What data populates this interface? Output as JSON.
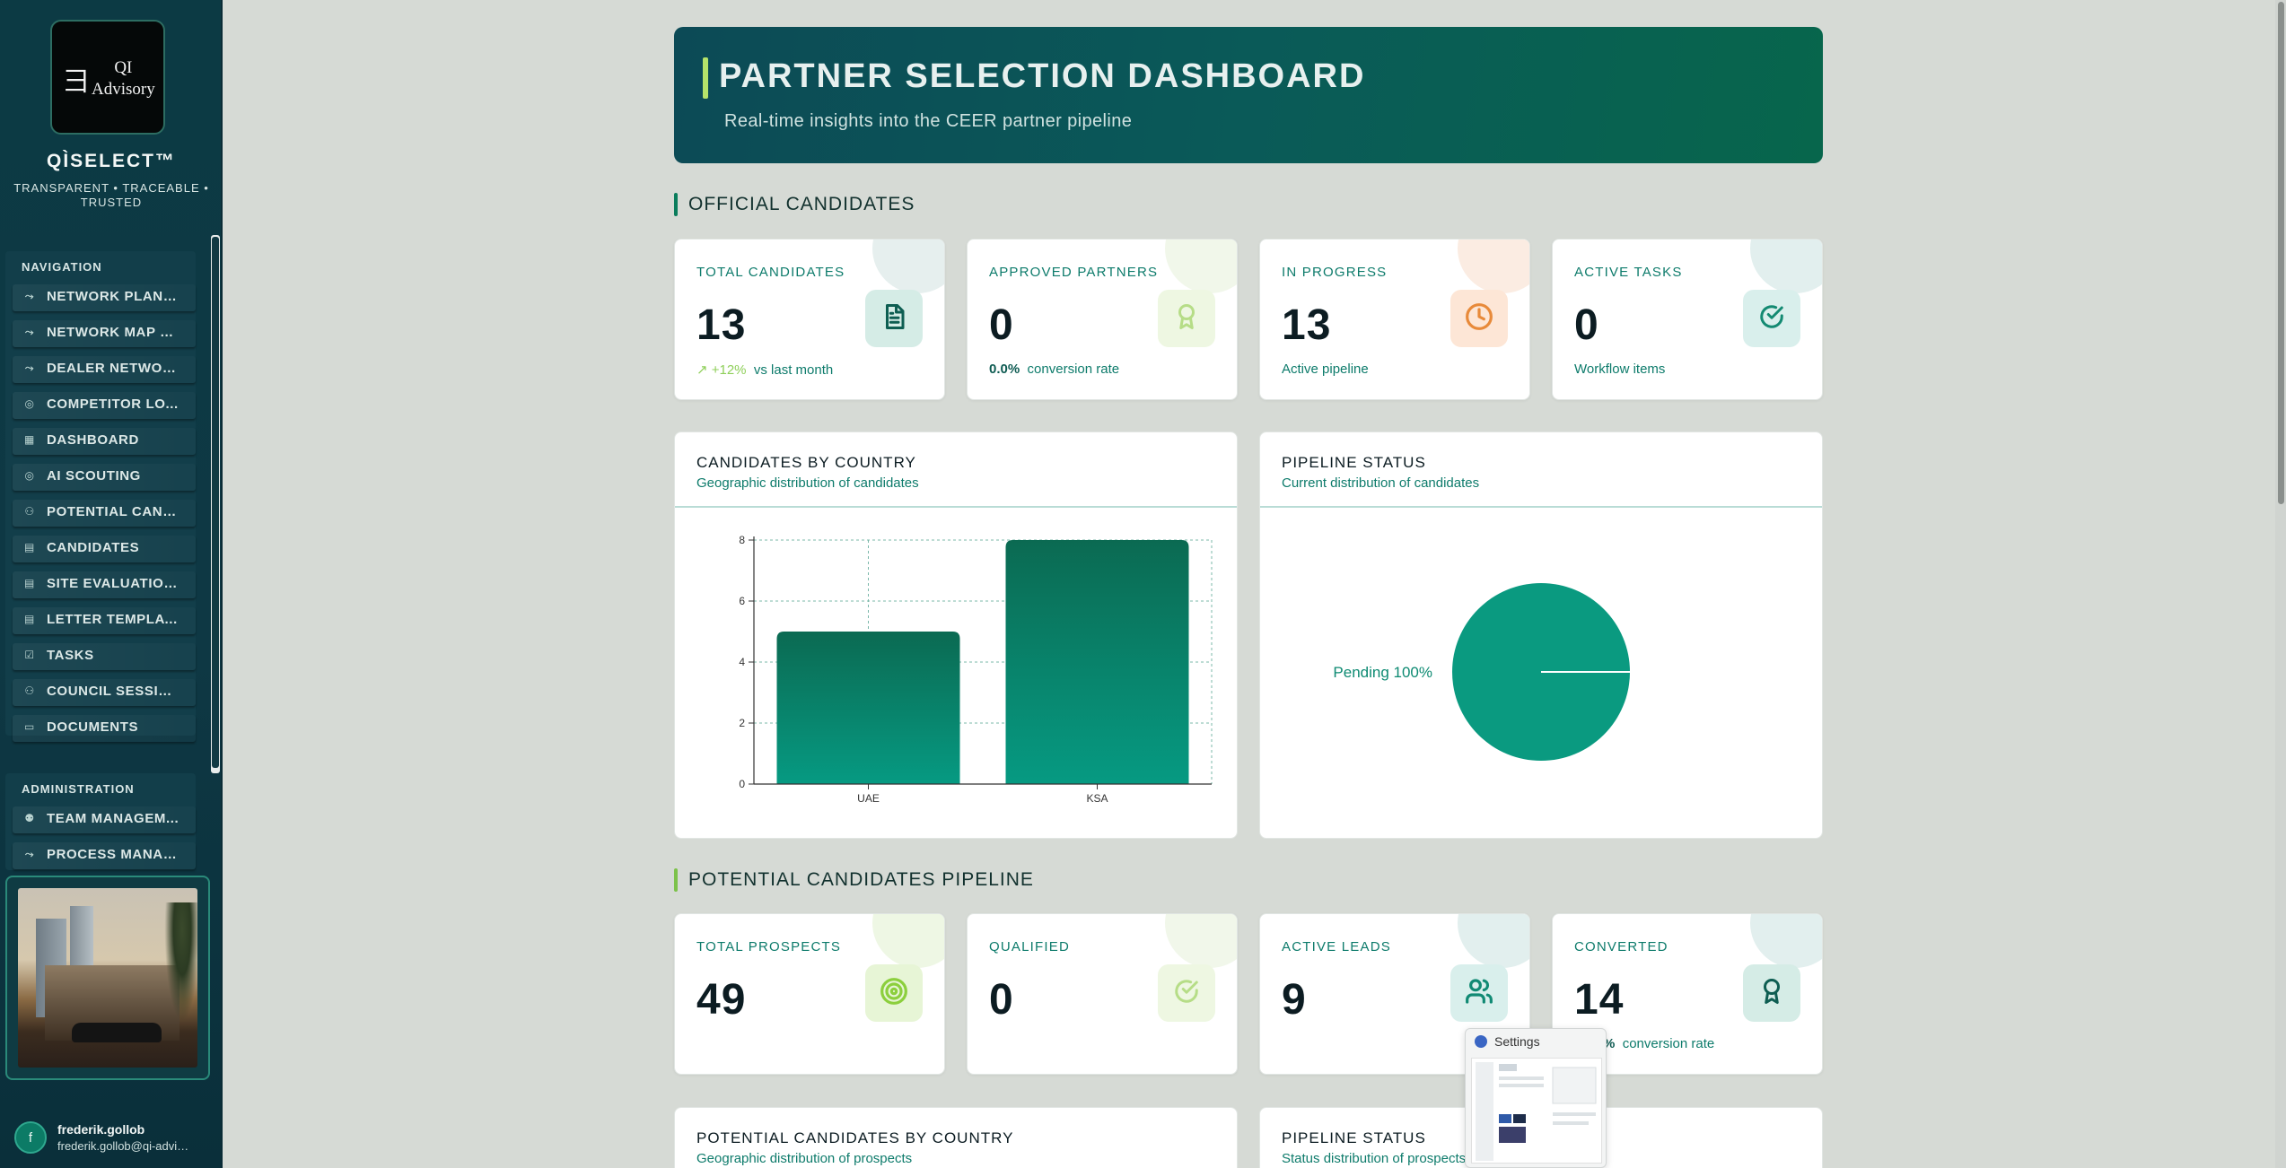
{
  "sidebar": {
    "logo_mark": "⺕",
    "logo_text_line1": "QI",
    "logo_text_line2": "Advisory",
    "brand": "QÌSELECT™",
    "tagline": "TRANSPARENT • TRACEABLE • TRUSTED",
    "nav_title": "NAVIGATION",
    "nav_items": [
      {
        "label": "NETWORK PLANN...",
        "icon": "route-icon"
      },
      {
        "label": "NETWORK MAP & ...",
        "icon": "route-icon"
      },
      {
        "label": "DEALER NETWOR...",
        "icon": "route-icon"
      },
      {
        "label": "COMPETITOR LO...",
        "icon": "radar-icon"
      },
      {
        "label": "DASHBOARD",
        "icon": "grid-icon"
      },
      {
        "label": "AI SCOUTING",
        "icon": "radar-icon"
      },
      {
        "label": "POTENTIAL CAND...",
        "icon": "users-icon"
      },
      {
        "label": "CANDIDATES",
        "icon": "file-icon"
      },
      {
        "label": "SITE EVALUATIONS",
        "icon": "file-icon"
      },
      {
        "label": "LETTER TEMPLAT...",
        "icon": "file-icon"
      },
      {
        "label": "TASKS",
        "icon": "check-square-icon"
      },
      {
        "label": "COUNCIL SESSIO...",
        "icon": "users-icon"
      },
      {
        "label": "DOCUMENTS",
        "icon": "folder-icon"
      }
    ],
    "admin_title": "ADMINISTRATION",
    "admin_items": [
      {
        "label": "TEAM MANAGEM...",
        "icon": "user-cog-icon"
      },
      {
        "label": "PROCESS MANAG...",
        "icon": "route-icon"
      }
    ],
    "user": {
      "initial": "f",
      "name": "frederik.gollob",
      "email": "frederik.gollob@qi-advis..."
    }
  },
  "hero": {
    "title": "PARTNER SELECTION DASHBOARD",
    "subtitle": "Real-time insights into the CEER partner pipeline"
  },
  "official": {
    "section_title": "OFFICIAL CANDIDATES",
    "cards": [
      {
        "label": "TOTAL CANDIDATES",
        "value": "13",
        "trend": "↗ +12%",
        "foot": "vs last month",
        "icon": "file-icon",
        "accent": "#d5ece6",
        "bubble": "#e6efee"
      },
      {
        "label": "APPROVED PARTNERS",
        "value": "0",
        "foot_bold": "0.0%",
        "foot": "conversion rate",
        "icon": "award-icon",
        "accent": "#eef7e2",
        "bubble": "#f1f7ea"
      },
      {
        "label": "IN PROGRESS",
        "value": "13",
        "foot": "Active pipeline",
        "icon": "clock-icon",
        "accent": "#fde6d6",
        "bubble": "#fbece2"
      },
      {
        "label": "ACTIVE TASKS",
        "value": "0",
        "foot": "Workflow items",
        "icon": "check-circle-icon",
        "accent": "#d9efec",
        "bubble": "#e2efee"
      }
    ]
  },
  "charts": {
    "country": {
      "title": "CANDIDATES BY COUNTRY",
      "subtitle": "Geographic distribution of candidates"
    },
    "status": {
      "title": "PIPELINE STATUS",
      "subtitle": "Current distribution of candidates",
      "slice_label": "Pending 100%"
    }
  },
  "chart_data": [
    {
      "type": "bar",
      "title": "CANDIDATES BY COUNTRY",
      "categories": [
        "UAE",
        "KSA"
      ],
      "values": [
        5,
        8
      ],
      "ylim": [
        0,
        8
      ],
      "yticks": [
        "0",
        "2",
        "4",
        "6",
        "8"
      ],
      "grid": true,
      "color": "#0a8a72"
    },
    {
      "type": "pie",
      "title": "PIPELINE STATUS",
      "labels": [
        "Pending"
      ],
      "values": [
        100
      ],
      "color": "#0a9a80"
    }
  ],
  "potential": {
    "section_title": "POTENTIAL CANDIDATES PIPELINE",
    "cards": [
      {
        "label": "TOTAL PROSPECTS",
        "value": "49",
        "icon": "target-icon",
        "accent": "#e7f5d6",
        "bubble": "#eef7e4"
      },
      {
        "label": "QUALIFIED",
        "value": "0",
        "icon": "check-circle-icon",
        "accent": "#eef7e2",
        "bubble": "#f1f7ea"
      },
      {
        "label": "ACTIVE LEADS",
        "value": "9",
        "icon": "users-icon",
        "accent": "#d9efec",
        "bubble": "#e2efee"
      },
      {
        "label": "CONVERTED",
        "value": "14",
        "foot_bold": "%",
        "foot": "conversion rate",
        "icon": "award-icon",
        "accent": "#d5ece6",
        "bubble": "#e2efee"
      }
    ]
  },
  "bottom_panels": {
    "country": {
      "title": "POTENTIAL CANDIDATES BY COUNTRY",
      "subtitle": "Geographic distribution of prospects"
    },
    "status": {
      "title": "PIPELINE STATUS",
      "subtitle": "Status distribution of prospects"
    }
  },
  "settings_popup": {
    "label": "Settings"
  }
}
